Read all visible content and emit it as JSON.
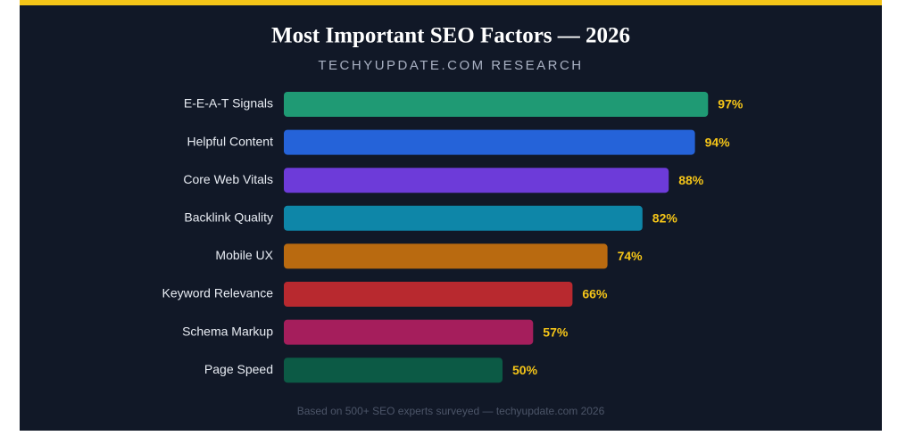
{
  "chart_data": {
    "type": "bar",
    "orientation": "horizontal",
    "title": "Most Important SEO Factors — 2026",
    "subtitle": "TECHYUPDATE.COM RESEARCH",
    "footer": "Based on 500+ SEO experts surveyed — techyupdate.com 2026",
    "categories": [
      "E-E-A-T Signals",
      "Helpful Content",
      "Core Web Vitals",
      "Backlink Quality",
      "Mobile UX",
      "Keyword Relevance",
      "Schema Markup",
      "Page Speed"
    ],
    "values": [
      97,
      94,
      88,
      82,
      74,
      66,
      57,
      50
    ],
    "value_labels": [
      "97%",
      "94%",
      "88%",
      "82%",
      "74%",
      "66%",
      "57%",
      "50%"
    ],
    "colors": [
      "#1f9a74",
      "#2563d9",
      "#6d3bd9",
      "#0e86a8",
      "#b96a10",
      "#b8292f",
      "#a51e5c",
      "#0c5a45"
    ],
    "xlim": [
      0,
      100
    ]
  }
}
